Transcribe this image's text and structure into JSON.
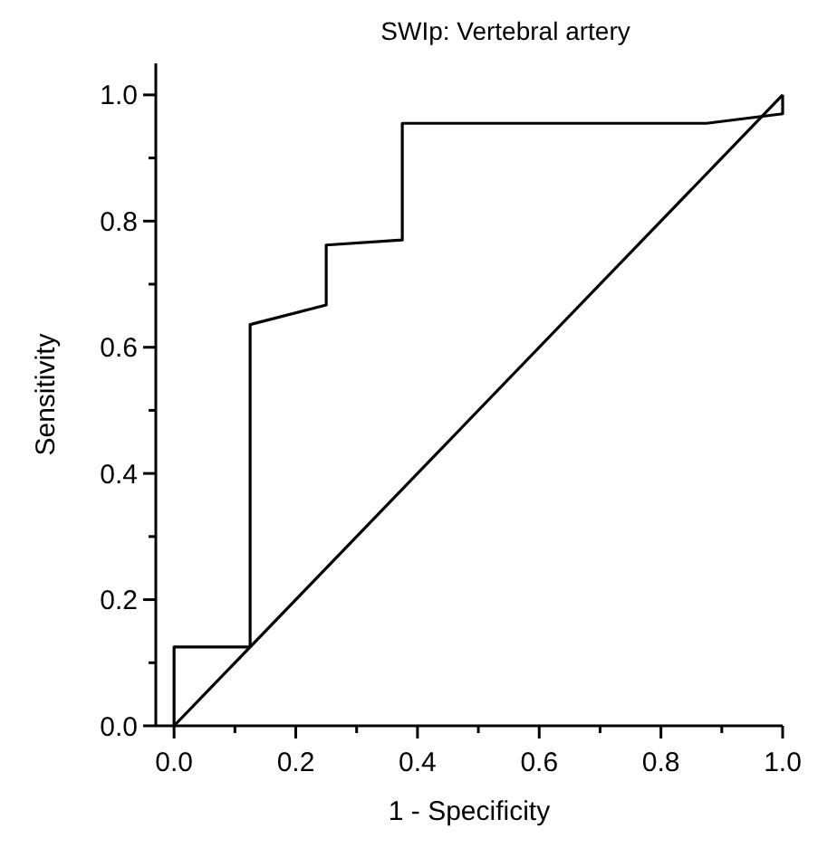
{
  "chart_data": {
    "type": "line",
    "title": "SWIp: Vertebral artery",
    "xlabel": "1 - Specificity",
    "ylabel": "Sensitivity",
    "xlim": [
      -0.03,
      1.0
    ],
    "ylim": [
      0,
      1.05
    ],
    "xticks": [
      {
        "value": 0,
        "label": "0.0"
      },
      {
        "value": 0.1,
        "label": null
      },
      {
        "value": 0.2,
        "label": "0.2"
      },
      {
        "value": 0.3,
        "label": null
      },
      {
        "value": 0.4,
        "label": "0.4"
      },
      {
        "value": 0.5,
        "label": null
      },
      {
        "value": 0.6,
        "label": "0.6"
      },
      {
        "value": 0.7,
        "label": null
      },
      {
        "value": 0.8,
        "label": "0.8"
      },
      {
        "value": 0.9,
        "label": null
      },
      {
        "value": 1,
        "label": "1.0"
      }
    ],
    "yticks": [
      {
        "value": 0,
        "label": "0.0"
      },
      {
        "value": 0.1,
        "label": null
      },
      {
        "value": 0.2,
        "label": "0.2"
      },
      {
        "value": 0.3,
        "label": null
      },
      {
        "value": 0.4,
        "label": "0.4"
      },
      {
        "value": 0.5,
        "label": null
      },
      {
        "value": 0.6,
        "label": "0.6"
      },
      {
        "value": 0.7,
        "label": null
      },
      {
        "value": 0.8,
        "label": "0.8"
      },
      {
        "value": 0.9,
        "label": null
      },
      {
        "value": 1,
        "label": "1.0"
      }
    ],
    "series": [
      {
        "color": "#000000",
        "x": [
          0,
          0,
          0.125,
          0.125,
          0.25,
          0.25,
          0.375,
          0.375,
          0.875,
          1.0,
          1.0
        ],
        "values": [
          0,
          0.125,
          0.125,
          0.636,
          0.667,
          0.762,
          0.77,
          0.955,
          0.955,
          0.97,
          1.0
        ]
      },
      {
        "color": "#000000",
        "x": [
          0,
          1
        ],
        "values": [
          0,
          1
        ]
      }
    ],
    "grid": false,
    "marker": "none",
    "line_style": "solid"
  }
}
